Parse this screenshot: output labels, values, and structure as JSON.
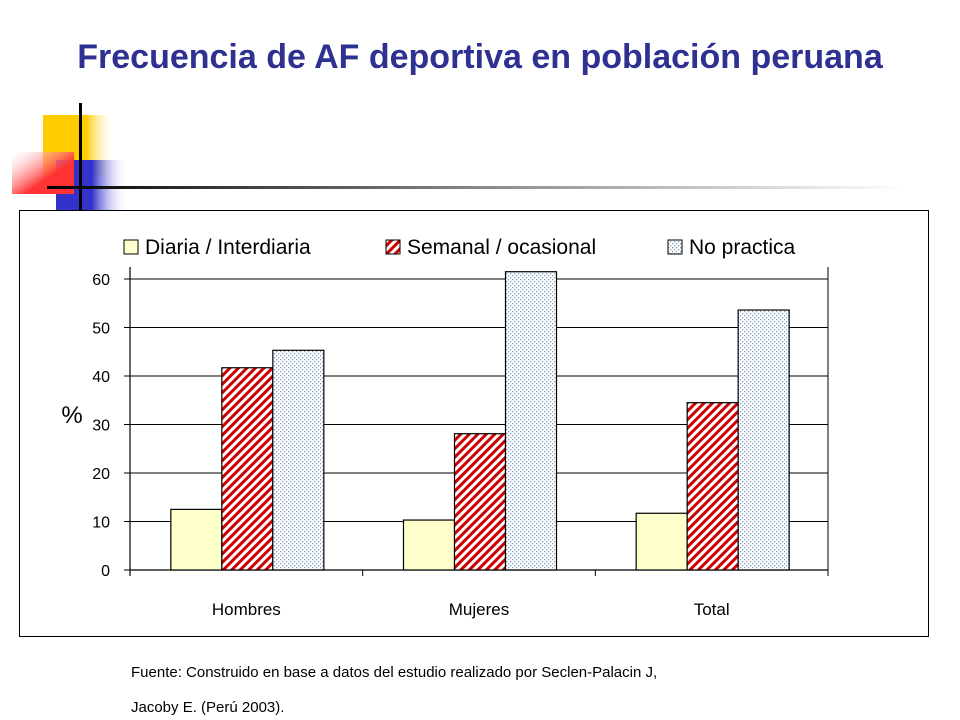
{
  "slide": {
    "title": "Frecuencia de AF deportiva en población peruana",
    "source_line1": "Fuente: Construido en base a datos del estudio realizado por Seclen-Palacin J,",
    "source_line2": "Jacoby E. (Perú 2003)."
  },
  "colors": {
    "title": "#2E3192",
    "deco_yellow": "#FFCC00",
    "deco_red": "#FF3333",
    "deco_blue": "#3333CC",
    "series": [
      "#FFFFCC",
      "#CC0000",
      "#CCE5FF"
    ]
  },
  "chart_data": {
    "type": "bar",
    "title": "",
    "xlabel": "",
    "ylabel": "%",
    "ylim": [
      0,
      60
    ],
    "yticks": [
      0,
      10,
      20,
      30,
      40,
      50,
      60
    ],
    "grid": true,
    "legend_position": "top",
    "categories": [
      "Hombres",
      "Mujeres",
      "Total"
    ],
    "series": [
      {
        "name": "Diaria / Interdiaria",
        "values": [
          12.5,
          10.3,
          11.7
        ],
        "pattern": "solid",
        "color": "#FFFFCC"
      },
      {
        "name": "Semanal / ocasional",
        "values": [
          41.7,
          28.1,
          34.5
        ],
        "pattern": "diagonal-stripes",
        "color": "#CC0000"
      },
      {
        "name": "No practica",
        "values": [
          45.3,
          61.5,
          53.6
        ],
        "pattern": "dots",
        "color": "#CCE5FF"
      }
    ]
  }
}
